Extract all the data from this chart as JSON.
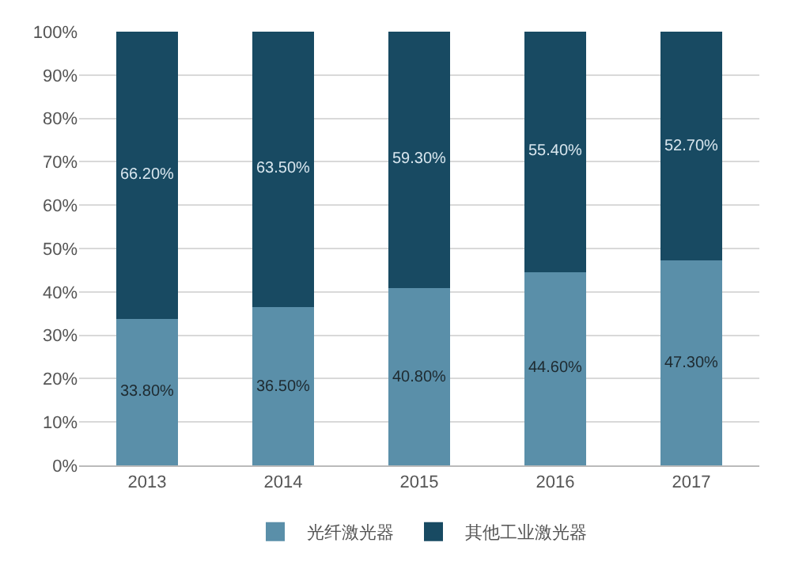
{
  "chart_data": {
    "type": "bar",
    "stacked": true,
    "categories": [
      "2013",
      "2014",
      "2015",
      "2016",
      "2017"
    ],
    "series": [
      {
        "name": "光纤激光器",
        "color": "#5a8fa9",
        "values": [
          33.8,
          36.5,
          40.8,
          44.6,
          47.3
        ],
        "value_labels": [
          "33.80%",
          "36.50%",
          "40.80%",
          "44.60%",
          "47.30%"
        ]
      },
      {
        "name": "其他工业激光器",
        "color": "#184a62",
        "values": [
          66.2,
          63.5,
          59.3,
          55.4,
          52.7
        ],
        "value_labels": [
          "66.20%",
          "63.50%",
          "59.30%",
          "55.40%",
          "52.70%"
        ]
      }
    ],
    "ylim": [
      0,
      100
    ],
    "yticks": [
      {
        "value": 0,
        "label": "0%"
      },
      {
        "value": 10,
        "label": "10%"
      },
      {
        "value": 20,
        "label": "20%"
      },
      {
        "value": 30,
        "label": "30%"
      },
      {
        "value": 40,
        "label": "40%"
      },
      {
        "value": 50,
        "label": "50%"
      },
      {
        "value": 60,
        "label": "60%"
      },
      {
        "value": 70,
        "label": "70%"
      },
      {
        "value": 80,
        "label": "80%"
      },
      {
        "value": 90,
        "label": "90%"
      },
      {
        "value": 100,
        "label": "100%"
      }
    ],
    "grid": "y",
    "legend": "bottom"
  }
}
